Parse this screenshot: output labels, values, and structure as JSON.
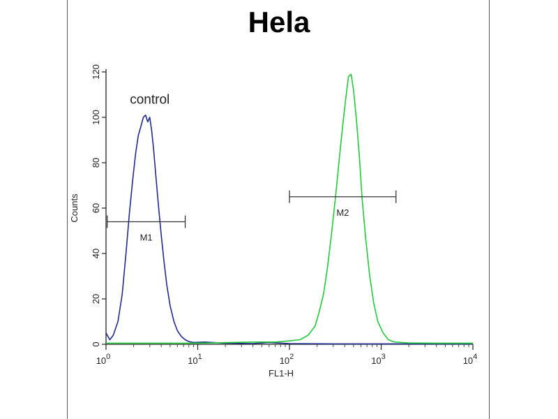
{
  "chart_data": {
    "type": "line",
    "title": "Hela",
    "xlabel": "FL1-H",
    "ylabel": "Counts",
    "x_scale": "log",
    "xlim": [
      1,
      10000
    ],
    "ylim": [
      0,
      120
    ],
    "x_ticks": [
      {
        "value": 1,
        "base": "10",
        "exp": "0"
      },
      {
        "value": 10,
        "base": "10",
        "exp": "1"
      },
      {
        "value": 100,
        "base": "10",
        "exp": "2"
      },
      {
        "value": 1000,
        "base": "10",
        "exp": "3"
      },
      {
        "value": 10000,
        "base": "10",
        "exp": "4"
      }
    ],
    "y_ticks": [
      0,
      20,
      40,
      60,
      80,
      100,
      120
    ],
    "grid": false,
    "annotations": [
      {
        "text": "control",
        "x": 3.0,
        "y": 106
      }
    ],
    "markers": [
      {
        "name": "M1",
        "x_start": 1.03,
        "x_end": 7.3,
        "y": 54
      },
      {
        "name": "M2",
        "x_start": 100,
        "x_end": 1450,
        "y": 65
      }
    ],
    "series": [
      {
        "color": "#1f2a8c",
        "x": [
          1,
          1.1,
          1.2,
          1.35,
          1.5,
          1.65,
          1.8,
          1.95,
          2.1,
          2.25,
          2.4,
          2.55,
          2.7,
          2.85,
          3.0,
          3.15,
          3.3,
          3.5,
          3.75,
          4.0,
          4.3,
          4.6,
          5.0,
          5.5,
          6.0,
          6.6,
          7.3,
          8.0,
          9.0,
          12,
          20,
          40,
          60,
          100,
          300,
          1000,
          10000
        ],
        "y": [
          5,
          2,
          4,
          10,
          22,
          40,
          58,
          72,
          84,
          92,
          96,
          100,
          101,
          98,
          100,
          94,
          86,
          74,
          60,
          48,
          36,
          26,
          17,
          10,
          6,
          3.5,
          2,
          1.2,
          0.8,
          1,
          0.5,
          0.3,
          0.8,
          0.3,
          0.2,
          0.2,
          0.2
        ]
      },
      {
        "color": "#22c93a",
        "x": [
          1,
          10,
          40,
          70,
          100,
          130,
          160,
          190,
          210,
          235,
          260,
          290,
          320,
          350,
          380,
          410,
          440,
          470,
          500,
          540,
          580,
          620,
          680,
          750,
          830,
          920,
          1050,
          1200,
          1400,
          2000,
          4000,
          10000
        ],
        "y": [
          0.5,
          0.5,
          1,
          1,
          1.5,
          2,
          4,
          8,
          14,
          22,
          34,
          50,
          66,
          82,
          96,
          108,
          118,
          119,
          112,
          98,
          82,
          64,
          46,
          30,
          18,
          10,
          5,
          2,
          1,
          0.6,
          0.5,
          0.5
        ]
      }
    ]
  }
}
